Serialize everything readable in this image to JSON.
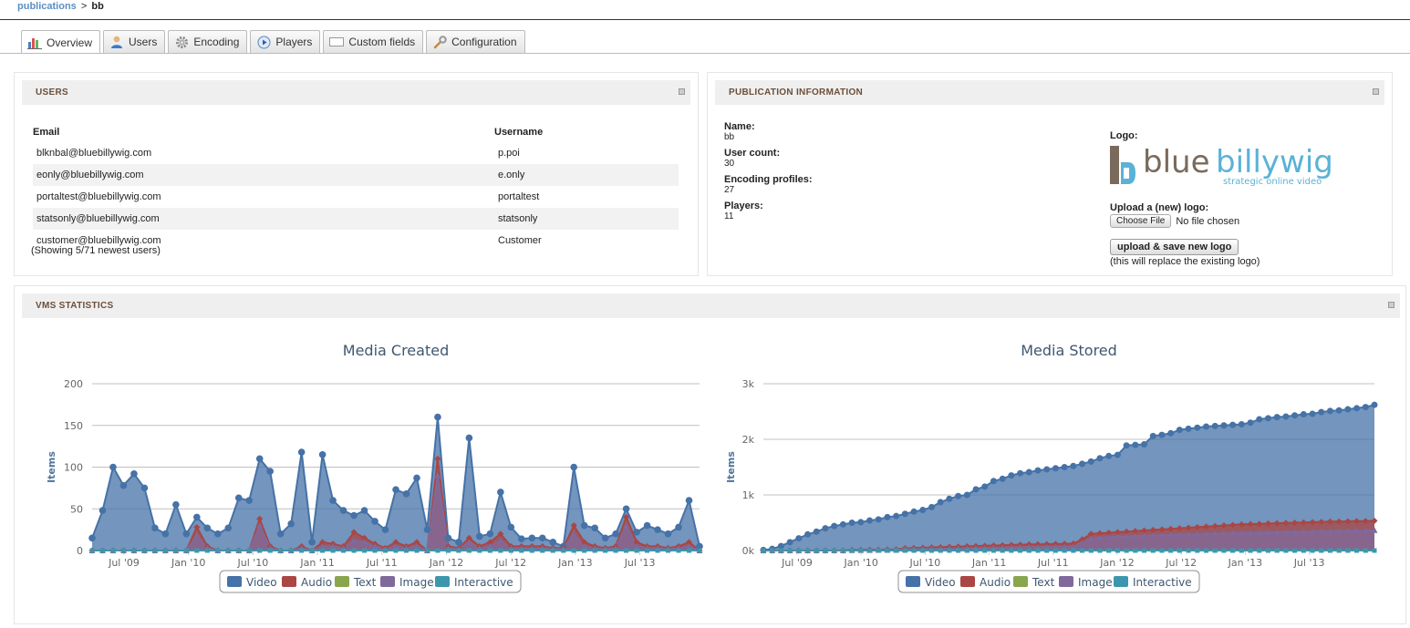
{
  "breadcrumb": {
    "parent": "publications",
    "sep": ">",
    "current": "bb"
  },
  "tabs": [
    {
      "label": "Overview",
      "icon": "bar-chart-icon",
      "active": true
    },
    {
      "label": "Users",
      "icon": "user-icon"
    },
    {
      "label": "Encoding",
      "icon": "gear-icon"
    },
    {
      "label": "Players",
      "icon": "play-icon"
    },
    {
      "label": "Custom fields",
      "icon": "field-icon"
    },
    {
      "label": "Configuration",
      "icon": "wrench-icon"
    }
  ],
  "users_panel": {
    "title": "USERS",
    "columns": [
      "Email",
      "Username"
    ],
    "rows": [
      {
        "email": "blknbal@bluebillywig.com",
        "username": "p.poi"
      },
      {
        "email": "eonly@bluebillywig.com",
        "username": "e.only"
      },
      {
        "email": "portaltest@bluebillywig.com",
        "username": "portaltest"
      },
      {
        "email": "statsonly@bluebillywig.com",
        "username": "statsonly"
      },
      {
        "email": "customer@bluebillywig.com",
        "username": "Customer"
      }
    ],
    "showing": "(Showing 5/71 newest users)"
  },
  "pub_panel": {
    "title": "PUBLICATION INFORMATION",
    "fields": [
      {
        "label": "Name:",
        "value": "bb"
      },
      {
        "label": "User count:",
        "value": "30"
      },
      {
        "label": "Encoding profiles:",
        "value": "27"
      },
      {
        "label": "Players:",
        "value": "11"
      }
    ],
    "logo_label": "Logo:",
    "logo_text_blue": "blue",
    "logo_text_billy": "billywig",
    "logo_tagline": "strategic online video",
    "upload_label": "Upload a (new) logo:",
    "choose_file": "Choose File",
    "no_file": "No file chosen",
    "upload_button": "upload & save new logo",
    "upload_note": "(this will replace the existing logo)"
  },
  "stats_panel": {
    "title": "VMS STATISTICS"
  },
  "colors": {
    "video": "#4572a7",
    "audio": "#aa4643",
    "text": "#89a54e",
    "image": "#80699b",
    "interactive": "#3d96ae"
  },
  "chart_data": [
    {
      "type": "area",
      "title": "Media Created",
      "ylabel": "Items",
      "ylim": [
        0,
        200
      ],
      "yticks": [
        "0",
        "50",
        "100",
        "150",
        "200"
      ],
      "xticks": [
        "Jul '09",
        "Jan '10",
        "Jul '10",
        "Jan '11",
        "Jul '11",
        "Jan '12",
        "Jul '12",
        "Jan '13",
        "Jul '13"
      ],
      "legend": [
        "Video",
        "Audio",
        "Text",
        "Image",
        "Interactive"
      ],
      "series": [
        {
          "name": "Video",
          "values": [
            15,
            48,
            100,
            78,
            92,
            75,
            27,
            20,
            55,
            20,
            40,
            27,
            20,
            27,
            63,
            60,
            110,
            95,
            20,
            32,
            118,
            10,
            115,
            60,
            48,
            42,
            48,
            35,
            25,
            73,
            68,
            87,
            25,
            160,
            15,
            10,
            135,
            17,
            20,
            70,
            28,
            14,
            15,
            15,
            10,
            5,
            100,
            30,
            27,
            15,
            20,
            50,
            22,
            30,
            25,
            20,
            28,
            60,
            5
          ]
        },
        {
          "name": "Audio",
          "values": [
            0,
            0,
            0,
            0,
            0,
            0,
            0,
            0,
            0,
            0,
            28,
            5,
            0,
            0,
            0,
            0,
            38,
            5,
            0,
            0,
            5,
            0,
            10,
            8,
            5,
            22,
            15,
            8,
            3,
            10,
            5,
            10,
            0,
            110,
            5,
            3,
            15,
            5,
            10,
            20,
            5,
            5,
            5,
            5,
            3,
            3,
            30,
            10,
            5,
            3,
            5,
            40,
            10,
            5,
            5,
            3,
            5,
            10,
            0
          ]
        },
        {
          "name": "Text",
          "values": [
            0,
            0,
            0,
            0,
            0,
            0,
            0,
            0,
            0,
            0,
            0,
            0,
            0,
            0,
            0,
            0,
            0,
            0,
            0,
            0,
            0,
            0,
            0,
            0,
            0,
            0,
            0,
            0,
            0,
            0,
            0,
            0,
            0,
            0,
            0,
            0,
            0,
            0,
            0,
            0,
            0,
            0,
            0,
            0,
            0,
            0,
            0,
            0,
            0,
            0,
            0,
            0,
            0,
            0,
            0,
            0,
            0,
            0,
            0
          ]
        },
        {
          "name": "Image",
          "values": [
            0,
            0,
            0,
            0,
            0,
            0,
            0,
            0,
            0,
            0,
            18,
            3,
            0,
            0,
            0,
            0,
            30,
            3,
            0,
            0,
            3,
            0,
            5,
            5,
            3,
            12,
            10,
            5,
            2,
            5,
            3,
            5,
            0,
            90,
            3,
            2,
            10,
            3,
            5,
            12,
            3,
            3,
            3,
            3,
            2,
            2,
            20,
            5,
            3,
            2,
            3,
            30,
            5,
            3,
            3,
            2,
            3,
            5,
            0
          ]
        },
        {
          "name": "Interactive",
          "values": [
            0,
            0,
            0,
            0,
            0,
            0,
            0,
            0,
            0,
            0,
            0,
            0,
            0,
            0,
            0,
            0,
            0,
            0,
            0,
            0,
            0,
            0,
            0,
            0,
            0,
            0,
            0,
            0,
            0,
            0,
            0,
            0,
            0,
            0,
            0,
            0,
            0,
            0,
            0,
            0,
            0,
            0,
            0,
            0,
            0,
            0,
            0,
            0,
            0,
            0,
            0,
            0,
            0,
            0,
            0,
            0,
            0,
            0,
            0
          ]
        }
      ]
    },
    {
      "type": "area",
      "title": "Media Stored",
      "ylabel": "Items",
      "ylim": [
        0,
        3000
      ],
      "yticks": [
        "0k",
        "1k",
        "2k",
        "3k"
      ],
      "xticks": [
        "Jul '09",
        "Jan '10",
        "Jul '10",
        "Jan '11",
        "Jul '11",
        "Jan '12",
        "Jul '12",
        "Jan '13",
        "Jul '13"
      ],
      "legend": [
        "Video",
        "Audio",
        "Text",
        "Image",
        "Interactive"
      ],
      "series": [
        {
          "name": "Video",
          "values": [
            10,
            30,
            80,
            150,
            220,
            290,
            340,
            400,
            440,
            470,
            500,
            510,
            540,
            560,
            600,
            620,
            660,
            700,
            730,
            780,
            870,
            930,
            980,
            1000,
            1100,
            1150,
            1250,
            1290,
            1350,
            1390,
            1410,
            1440,
            1460,
            1480,
            1500,
            1520,
            1560,
            1600,
            1660,
            1700,
            1720,
            1890,
            1900,
            1910,
            2060,
            2080,
            2110,
            2170,
            2190,
            2210,
            2230,
            2240,
            2250,
            2260,
            2270,
            2300,
            2360,
            2380,
            2400,
            2410,
            2430,
            2450,
            2460,
            2490,
            2510,
            2520,
            2540,
            2560,
            2580,
            2620
          ]
        },
        {
          "name": "Audio",
          "values": [
            0,
            0,
            0,
            0,
            0,
            0,
            0,
            0,
            0,
            0,
            10,
            12,
            14,
            15,
            18,
            20,
            40,
            45,
            50,
            55,
            60,
            65,
            70,
            75,
            80,
            85,
            90,
            95,
            100,
            105,
            110,
            112,
            115,
            118,
            120,
            125,
            200,
            300,
            310,
            320,
            330,
            340,
            350,
            360,
            370,
            380,
            390,
            400,
            410,
            420,
            430,
            440,
            450,
            460,
            470,
            475,
            480,
            485,
            490,
            495,
            500,
            505,
            510,
            515,
            520,
            522,
            525,
            528,
            530,
            535
          ]
        },
        {
          "name": "Text",
          "values": [
            0,
            0,
            0,
            0,
            0,
            0,
            0,
            0,
            0,
            0,
            0,
            0,
            0,
            0,
            0,
            0,
            0,
            0,
            0,
            0,
            0,
            0,
            0,
            0,
            0,
            0,
            0,
            0,
            0,
            0,
            0,
            0,
            0,
            0,
            0,
            0,
            0,
            0,
            0,
            0,
            0,
            0,
            0,
            0,
            0,
            0,
            0,
            0,
            0,
            0,
            0,
            0,
            0,
            0,
            0,
            0,
            0,
            0,
            0,
            0,
            0,
            0,
            0,
            0,
            0,
            0,
            0,
            0,
            0,
            0
          ]
        },
        {
          "name": "Image",
          "values": [
            0,
            0,
            0,
            0,
            0,
            0,
            0,
            0,
            0,
            0,
            5,
            6,
            7,
            8,
            9,
            10,
            25,
            28,
            30,
            32,
            35,
            38,
            40,
            42,
            45,
            48,
            50,
            52,
            55,
            58,
            60,
            62,
            64,
            66,
            68,
            70,
            140,
            220,
            230,
            240,
            250,
            255,
            260,
            265,
            270,
            275,
            280,
            285,
            290,
            295,
            300,
            305,
            310,
            315,
            320,
            322,
            325,
            328,
            330,
            333,
            336,
            340,
            343,
            346,
            350,
            352,
            355,
            358,
            360,
            365
          ]
        },
        {
          "name": "Interactive",
          "values": [
            0,
            0,
            0,
            0,
            0,
            0,
            0,
            0,
            0,
            0,
            0,
            0,
            0,
            0,
            0,
            0,
            0,
            0,
            0,
            0,
            0,
            0,
            0,
            0,
            0,
            0,
            0,
            0,
            0,
            0,
            0,
            0,
            0,
            0,
            0,
            0,
            0,
            0,
            0,
            0,
            0,
            0,
            0,
            0,
            0,
            0,
            0,
            0,
            0,
            0,
            0,
            0,
            0,
            0,
            0,
            0,
            0,
            0,
            0,
            0,
            0,
            0,
            0,
            0,
            0,
            0,
            0,
            0,
            0,
            0
          ]
        }
      ]
    }
  ]
}
